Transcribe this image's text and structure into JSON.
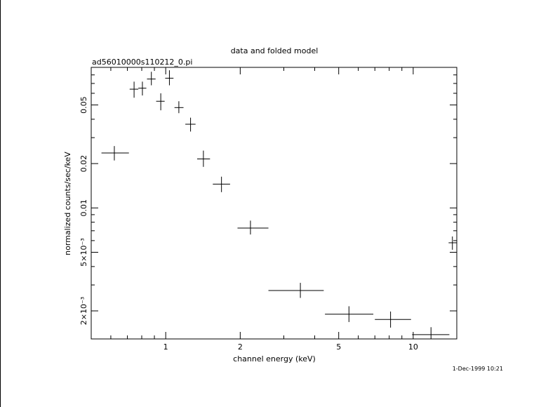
{
  "page": {
    "title": "data and folded model",
    "filename": "ad56010000s110212_0.pi",
    "timestamp": "1-Dec-1999 10:21"
  },
  "chart_data": {
    "type": "scatter",
    "title": "data and folded model",
    "subtitle": "ad56010000s110212_0.pi",
    "xlabel": "channel energy (keV)",
    "ylabel": "normalized counts/sec/keV",
    "xscale": "log",
    "yscale": "log",
    "xlim": [
      0.5,
      15
    ],
    "ylim": [
      0.00129,
      0.09
    ],
    "x_ticks": [
      {
        "value": 1,
        "label": "1"
      },
      {
        "value": 2,
        "label": "2"
      },
      {
        "value": 5,
        "label": "5"
      },
      {
        "value": 10,
        "label": "10"
      }
    ],
    "y_ticks": [
      {
        "value": 0.002,
        "label": "2×10⁻³"
      },
      {
        "value": 0.005,
        "label": "5×10⁻³"
      },
      {
        "value": 0.01,
        "label": "0.01"
      },
      {
        "value": 0.02,
        "label": "0.02"
      },
      {
        "value": 0.05,
        "label": "0.05"
      }
    ],
    "grid": false,
    "series": [
      {
        "points": [
          {
            "x": 0.62,
            "xlo": 0.55,
            "xhi": 0.71,
            "y": 0.0236,
            "ylo": 0.021,
            "yhi": 0.0263
          },
          {
            "x": 0.745,
            "xlo": 0.715,
            "xhi": 0.775,
            "y": 0.064,
            "ylo": 0.056,
            "yhi": 0.072
          },
          {
            "x": 0.805,
            "xlo": 0.775,
            "xhi": 0.835,
            "y": 0.065,
            "ylo": 0.058,
            "yhi": 0.072
          },
          {
            "x": 0.875,
            "xlo": 0.84,
            "xhi": 0.91,
            "y": 0.075,
            "ylo": 0.068,
            "yhi": 0.084
          },
          {
            "x": 0.955,
            "xlo": 0.915,
            "xhi": 0.99,
            "y": 0.053,
            "ylo": 0.046,
            "yhi": 0.06
          },
          {
            "x": 1.035,
            "xlo": 0.995,
            "xhi": 1.075,
            "y": 0.076,
            "ylo": 0.068,
            "yhi": 0.086
          },
          {
            "x": 1.13,
            "xlo": 1.085,
            "xhi": 1.18,
            "y": 0.048,
            "ylo": 0.044,
            "yhi": 0.053
          },
          {
            "x": 1.26,
            "xlo": 1.2,
            "xhi": 1.32,
            "y": 0.037,
            "ylo": 0.033,
            "yhi": 0.041
          },
          {
            "x": 1.42,
            "xlo": 1.34,
            "xhi": 1.51,
            "y": 0.0215,
            "ylo": 0.019,
            "yhi": 0.0245
          },
          {
            "x": 1.68,
            "xlo": 1.55,
            "xhi": 1.82,
            "y": 0.0145,
            "ylo": 0.0128,
            "yhi": 0.0163
          },
          {
            "x": 2.2,
            "xlo": 1.95,
            "xhi": 2.6,
            "y": 0.0073,
            "ylo": 0.0066,
            "yhi": 0.0082
          },
          {
            "x": 3.5,
            "xlo": 2.6,
            "xhi": 4.35,
            "y": 0.00275,
            "ylo": 0.00245,
            "yhi": 0.0031
          },
          {
            "x": 5.5,
            "xlo": 4.4,
            "xhi": 6.9,
            "y": 0.0019,
            "ylo": 0.00168,
            "yhi": 0.00215
          },
          {
            "x": 8.1,
            "xlo": 7.0,
            "xhi": 9.8,
            "y": 0.00175,
            "ylo": 0.00154,
            "yhi": 0.00198
          },
          {
            "x": 11.8,
            "xlo": 9.9,
            "xhi": 14.0,
            "y": 0.00138,
            "ylo": 0.00122,
            "yhi": 0.00155
          },
          {
            "x": 14.4,
            "xlo": 13.9,
            "xhi": 15.0,
            "y": 0.0058,
            "ylo": 0.0052,
            "yhi": 0.0064
          }
        ]
      }
    ]
  }
}
